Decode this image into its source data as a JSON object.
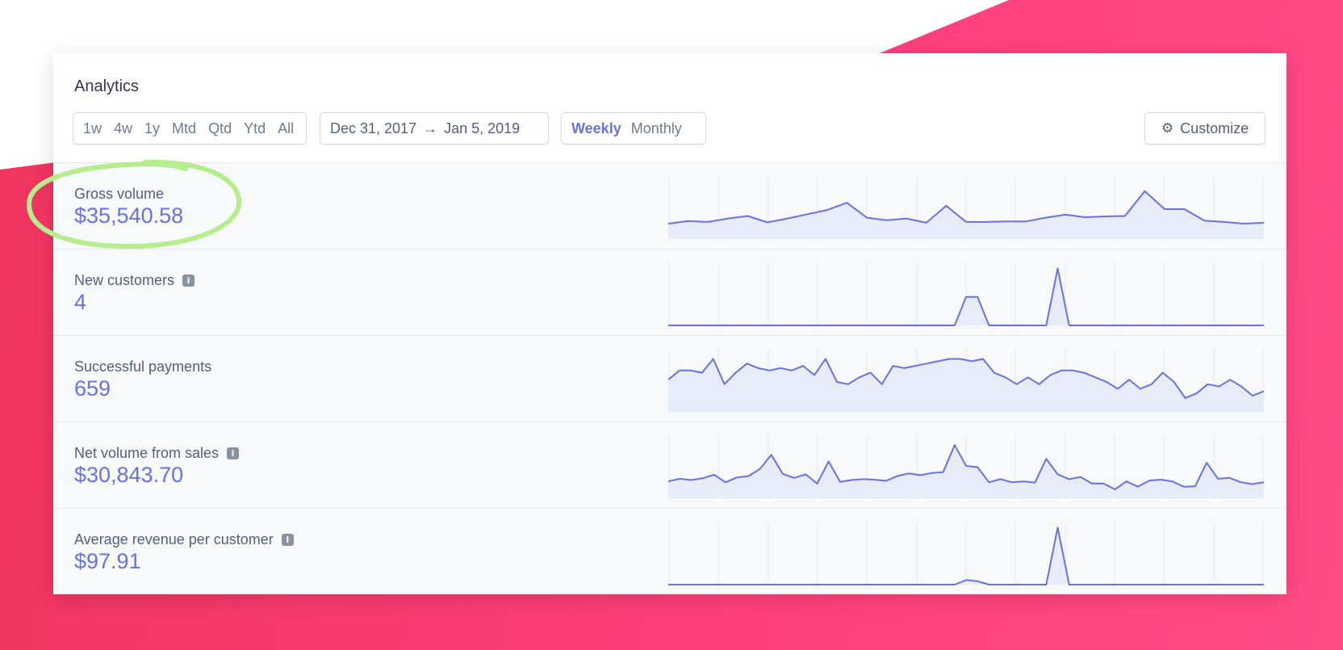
{
  "colors": {
    "accent": "#6772e5",
    "background_pink": "#ff3f7e",
    "highlight_green": "#b6ee8d"
  },
  "title": "Analytics",
  "ranges": [
    "1w",
    "4w",
    "1y",
    "Mtd",
    "Qtd",
    "Ytd",
    "All"
  ],
  "date_range": {
    "start": "Dec 31, 2017",
    "arrow": "→",
    "end": "Jan 5, 2019"
  },
  "interval": {
    "options": [
      "Weekly",
      "Monthly"
    ],
    "selected": "Weekly"
  },
  "customize": {
    "label": "Customize",
    "icon": "gear-icon"
  },
  "metrics": [
    {
      "label": "Gross volume",
      "value": "$35,540.58",
      "info": false,
      "chart_data": {
        "type": "area",
        "values": [
          3.6,
          4.2,
          4.0,
          4.8,
          5.4,
          3.9,
          4.8,
          5.8,
          6.8,
          8.5,
          5.0,
          4.4,
          4.8,
          3.8,
          7.8,
          4.0,
          4.0,
          4.1,
          4.1,
          5.0,
          5.7,
          5.1,
          5.3,
          5.4,
          11.2,
          7.0,
          7.0,
          4.3,
          4.0,
          3.6,
          3.8
        ],
        "ylim": [
          0,
          14
        ]
      }
    },
    {
      "label": "New customers",
      "value": "4",
      "info": true,
      "chart_data": {
        "type": "area",
        "values": [
          0,
          0,
          0,
          0,
          0,
          0,
          0,
          0,
          0,
          0,
          0,
          0,
          0,
          0,
          0,
          0,
          0,
          0,
          0,
          0,
          0,
          0,
          0,
          0,
          0,
          0,
          1,
          1,
          0,
          0,
          0,
          0,
          0,
          0,
          2,
          0,
          0,
          0,
          0,
          0,
          0,
          0,
          0,
          0,
          0,
          0,
          0,
          0,
          0,
          0,
          0,
          0,
          0
        ],
        "ylim": [
          0,
          2.1
        ]
      }
    },
    {
      "label": "Successful payments",
      "value": "659",
      "info": true,
      "chart_data": {
        "type": "area",
        "values": [
          14,
          18,
          18,
          17,
          23,
          12,
          17,
          21,
          19,
          18,
          19,
          18,
          20,
          16,
          23,
          13,
          12,
          15,
          17,
          12,
          20,
          19,
          20,
          21,
          22,
          23,
          23,
          22,
          23,
          17,
          15,
          12,
          15,
          12,
          16,
          18,
          18,
          17,
          15,
          13,
          10,
          14,
          10,
          12,
          17,
          13,
          6,
          8,
          12,
          11,
          14,
          11,
          7,
          9
        ],
        "ylim": [
          0,
          26
        ]
      }
    },
    {
      "label": "Net volume from sales",
      "value": "$30,843.70",
      "info": true,
      "chart_data": {
        "type": "area",
        "values": [
          3.8,
          4.4,
          4.1,
          4.5,
          5.3,
          3.6,
          4.7,
          5.0,
          6.6,
          9.8,
          5.5,
          4.6,
          5.4,
          3.3,
          8.3,
          3.7,
          4.1,
          4.3,
          4.2,
          3.9,
          5.0,
          5.6,
          5.2,
          5.7,
          5.9,
          12.0,
          7.3,
          7.0,
          3.6,
          4.3,
          3.6,
          3.8,
          3.5,
          8.9,
          5.4,
          4.3,
          4.8,
          3.3,
          3.3,
          2.0,
          3.8,
          2.6,
          4.0,
          4.2,
          3.8,
          2.6,
          2.7,
          8.0,
          4.4,
          4.6,
          3.6,
          3.2,
          3.6
        ],
        "ylim": [
          0,
          13.5
        ]
      }
    },
    {
      "label": "Average revenue per customer",
      "value": "$97.91",
      "info": true,
      "chart_data": {
        "type": "area",
        "values": [
          0,
          0,
          0,
          0,
          0,
          0,
          0,
          0,
          0,
          0,
          0,
          0,
          0,
          0,
          0,
          0,
          0,
          0,
          0,
          0,
          0,
          0,
          0,
          0,
          0,
          0,
          0.08,
          0.06,
          0,
          0,
          0,
          0,
          0,
          0,
          1.0,
          0,
          0,
          0,
          0,
          0,
          0,
          0,
          0,
          0,
          0,
          0,
          0,
          0,
          0,
          0,
          0,
          0,
          0
        ],
        "ylim": [
          0,
          1.05
        ]
      }
    }
  ]
}
